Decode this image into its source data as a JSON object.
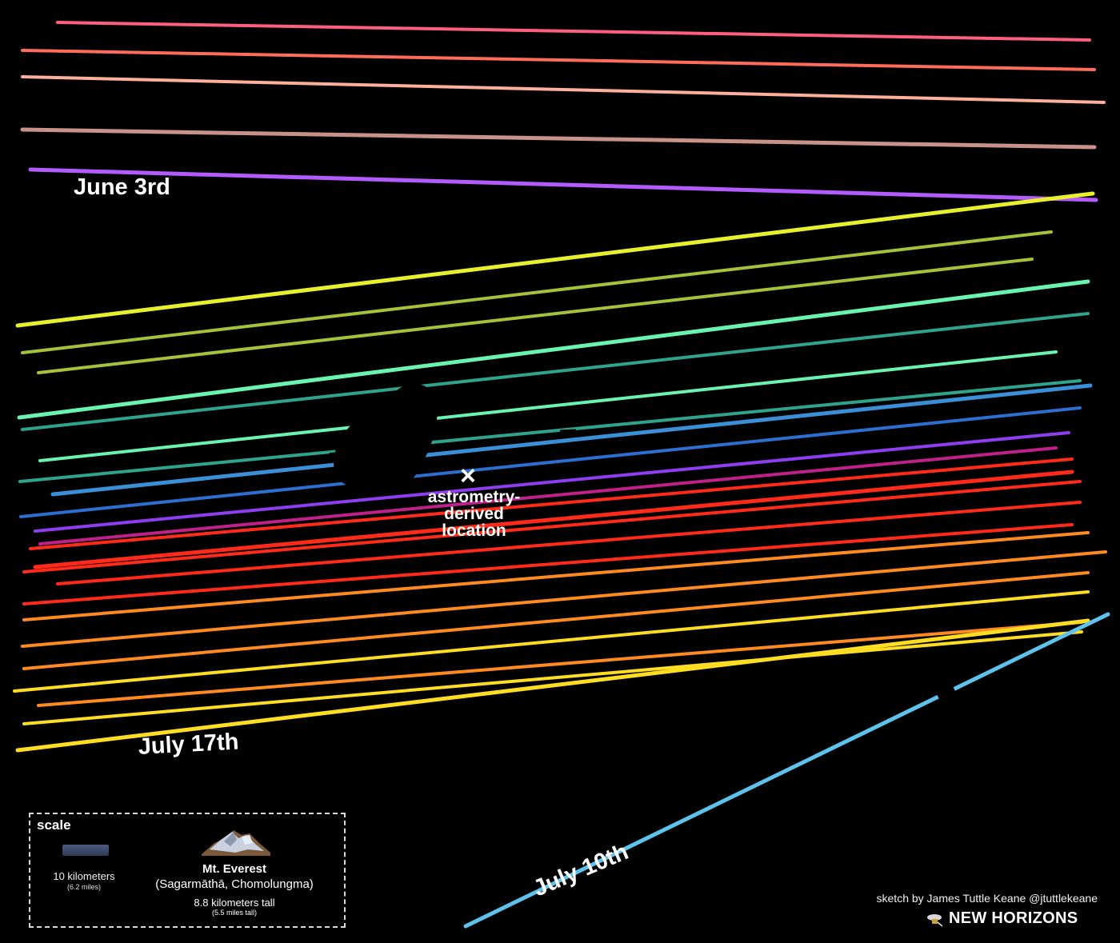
{
  "labels": {
    "june": "June 3rd",
    "july17": "July 17th",
    "july10": "July 10th",
    "astrometry_mark": "×",
    "astrometry_lines": [
      "astrometry-",
      "derived",
      "location"
    ]
  },
  "scale": {
    "title": "scale",
    "bar_label": "10 kilometers",
    "bar_sub": "(6.2 miles)",
    "everest_title": "Mt. Everest",
    "everest_names": "(Sagarmāthā, Chomolungma)",
    "everest_height": "8.8 kilometers tall",
    "everest_height_sub": "(5.5 miles tall)"
  },
  "credit": "sketch by James Tuttle Keane @jtuttlekeane",
  "brand": "NEW HORIZONS",
  "colors": {
    "background": "#000000",
    "text": "#ffffff",
    "chord_palette": [
      "#ff5f7e",
      "#ff6d5a",
      "#ffb09a",
      "#c99288",
      "#b35bff",
      "#e8f02e",
      "#a6c13a",
      "#6bf3b0",
      "#2fa38c",
      "#3b8fd6",
      "#2d6fd0",
      "#8f3df0",
      "#c0208a",
      "#ff2a1a",
      "#ff8a1f",
      "#ffdd22",
      "#5ec3ec"
    ]
  }
}
